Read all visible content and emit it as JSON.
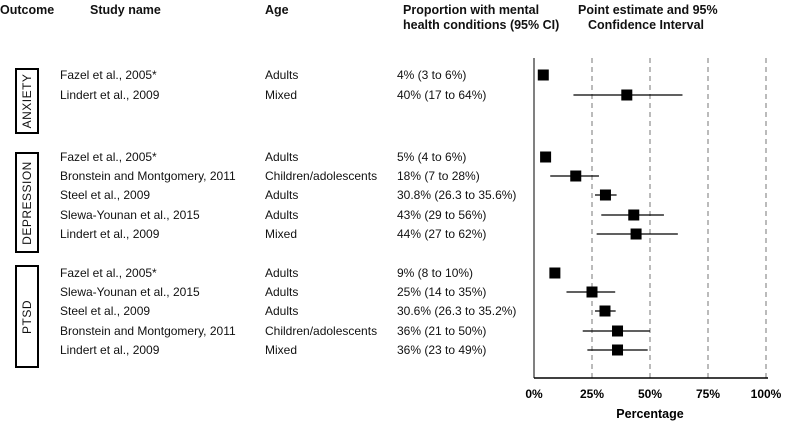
{
  "headers": {
    "outcome": "Outcome",
    "study": "Study name",
    "age": "Age",
    "proportion_line1": "Proportion with mental",
    "proportion_line2": "health conditions (95% CI)",
    "estimate_line1": "Point estimate and 95%",
    "estimate_line2": "Confidence Interval"
  },
  "groups": [
    {
      "label": "ANXIETY",
      "rows": [
        {
          "study": "Fazel et al., 2005*",
          "age": "Adults",
          "proportion": "4% (3 to 6%)",
          "point": 4,
          "low": 3,
          "high": 6
        },
        {
          "study": "Lindert et al., 2009",
          "age": "Mixed",
          "proportion": "40% (17 to 64%)",
          "point": 40,
          "low": 17,
          "high": 64
        }
      ]
    },
    {
      "label": "DEPRESSION",
      "rows": [
        {
          "study": "Fazel et al., 2005*",
          "age": "Adults",
          "proportion": "5% (4 to 6%)",
          "point": 5,
          "low": 4,
          "high": 6
        },
        {
          "study": "Bronstein and Montgomery, 2011",
          "age": "Children/adolescents",
          "proportion": "18% (7 to 28%)",
          "point": 18,
          "low": 7,
          "high": 28
        },
        {
          "study": "Steel et al., 2009",
          "age": "Adults",
          "proportion": "30.8% (26.3 to 35.6%)",
          "point": 30.8,
          "low": 26.3,
          "high": 35.6
        },
        {
          "study": "Slewa-Younan et al., 2015",
          "age": "Adults",
          "proportion": "43% (29 to 56%)",
          "point": 43,
          "low": 29,
          "high": 56
        },
        {
          "study": "Lindert et al., 2009",
          "age": "Mixed",
          "proportion": "44% (27 to 62%)",
          "point": 44,
          "low": 27,
          "high": 62
        }
      ]
    },
    {
      "label": "PTSD",
      "rows": [
        {
          "study": "Fazel et al., 2005*",
          "age": "Adults",
          "proportion": "9% (8 to 10%)",
          "point": 9,
          "low": 8,
          "high": 10
        },
        {
          "study": "Slewa-Younan et al., 2015",
          "age": "Adults",
          "proportion": "25% (14 to 35%)",
          "point": 25,
          "low": 14,
          "high": 35
        },
        {
          "study": "Steel et al., 2009",
          "age": "Adults",
          "proportion": "30.6% (26.3 to 35.2%)",
          "point": 30.6,
          "low": 26.3,
          "high": 35.2
        },
        {
          "study": "Bronstein and Montgomery, 2011",
          "age": "Children/adolescents",
          "proportion": "36% (21 to 50%)",
          "point": 36,
          "low": 21,
          "high": 50
        },
        {
          "study": "Lindert et al., 2009",
          "age": "Mixed",
          "proportion": "36% (23 to 49%)",
          "point": 36,
          "low": 23,
          "high": 49
        }
      ]
    }
  ],
  "chart_data": {
    "type": "forest",
    "title": "Point estimate and 95% Confidence Interval",
    "xlabel": "Percentage",
    "xlim": [
      0,
      100
    ],
    "ticks": [
      0,
      25,
      50,
      75,
      100
    ],
    "tick_labels": [
      "0%",
      "25%",
      "50%",
      "75%",
      "100%"
    ],
    "gridlines": "dashed vertical at 25%, 50%, 75%, 100%",
    "series": [
      {
        "outcome": "ANXIETY",
        "study": "Fazel et al., 2005*",
        "value": 4,
        "ci": [
          3,
          6
        ]
      },
      {
        "outcome": "ANXIETY",
        "study": "Lindert et al., 2009",
        "value": 40,
        "ci": [
          17,
          64
        ]
      },
      {
        "outcome": "DEPRESSION",
        "study": "Fazel et al., 2005*",
        "value": 5,
        "ci": [
          4,
          6
        ]
      },
      {
        "outcome": "DEPRESSION",
        "study": "Bronstein and Montgomery, 2011",
        "value": 18,
        "ci": [
          7,
          28
        ]
      },
      {
        "outcome": "DEPRESSION",
        "study": "Steel et al., 2009",
        "value": 30.8,
        "ci": [
          26.3,
          35.6
        ]
      },
      {
        "outcome": "DEPRESSION",
        "study": "Slewa-Younan et al., 2015",
        "value": 43,
        "ci": [
          29,
          56
        ]
      },
      {
        "outcome": "DEPRESSION",
        "study": "Lindert et al., 2009",
        "value": 44,
        "ci": [
          27,
          62
        ]
      },
      {
        "outcome": "PTSD",
        "study": "Fazel et al., 2005*",
        "value": 9,
        "ci": [
          8,
          10
        ]
      },
      {
        "outcome": "PTSD",
        "study": "Slewa-Younan et al., 2015",
        "value": 25,
        "ci": [
          14,
          35
        ]
      },
      {
        "outcome": "PTSD",
        "study": "Steel et al., 2009",
        "value": 30.6,
        "ci": [
          26.3,
          35.2
        ]
      },
      {
        "outcome": "PTSD",
        "study": "Bronstein and Montgomery, 2011",
        "value": 36,
        "ci": [
          21,
          50
        ]
      },
      {
        "outcome": "PTSD",
        "study": "Lindert et al., 2009",
        "value": 36,
        "ci": [
          23,
          49
        ]
      }
    ]
  }
}
